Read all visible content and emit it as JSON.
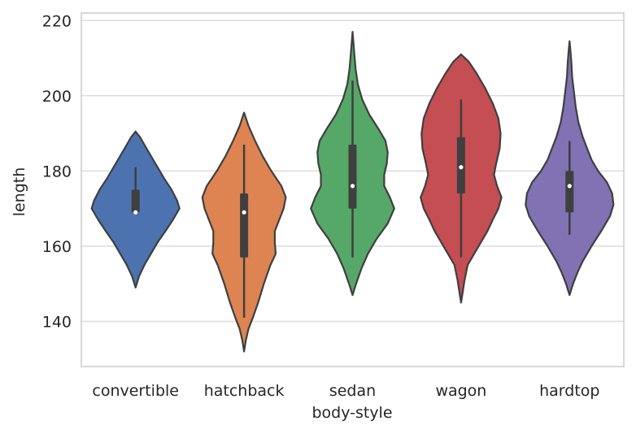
{
  "chart_data": {
    "type": "violin",
    "xlabel": "body-style",
    "ylabel": "length",
    "ylim": [
      128,
      222
    ],
    "yticks": [
      140,
      160,
      180,
      200,
      220
    ],
    "grid": "horizontal",
    "categories": [
      "convertible",
      "hatchback",
      "sedan",
      "wagon",
      "hardtop"
    ],
    "series": [
      {
        "category": "convertible",
        "color": "#4c72b0",
        "min": 149,
        "max": 190.5,
        "q1": 169,
        "median": 169,
        "q3": 175,
        "whisker_low": 169,
        "whisker_high": 181,
        "profile": [
          [
            149,
            0
          ],
          [
            152,
            0.08
          ],
          [
            155,
            0.2
          ],
          [
            158,
            0.35
          ],
          [
            161,
            0.5
          ],
          [
            164,
            0.68
          ],
          [
            167,
            0.85
          ],
          [
            170,
            1.0
          ],
          [
            172,
            0.95
          ],
          [
            175,
            0.82
          ],
          [
            178,
            0.65
          ],
          [
            181,
            0.5
          ],
          [
            184,
            0.35
          ],
          [
            187,
            0.2
          ],
          [
            189,
            0.1
          ],
          [
            190.5,
            0
          ]
        ]
      },
      {
        "category": "hatchback",
        "color": "#dd8452",
        "min": 132,
        "max": 195.5,
        "q1": 157,
        "median": 169,
        "q3": 174,
        "whisker_low": 141,
        "whisker_high": 187,
        "profile": [
          [
            132,
            0
          ],
          [
            135,
            0.04
          ],
          [
            138,
            0.1
          ],
          [
            141,
            0.2
          ],
          [
            145,
            0.32
          ],
          [
            150,
            0.45
          ],
          [
            155,
            0.6
          ],
          [
            158,
            0.72
          ],
          [
            161,
            0.7
          ],
          [
            164,
            0.7
          ],
          [
            167,
            0.8
          ],
          [
            170,
            0.9
          ],
          [
            173,
            0.95
          ],
          [
            176,
            0.85
          ],
          [
            180,
            0.62
          ],
          [
            184,
            0.42
          ],
          [
            188,
            0.25
          ],
          [
            192,
            0.1
          ],
          [
            195.5,
            0
          ]
        ]
      },
      {
        "category": "sedan",
        "color": "#55a868",
        "min": 147,
        "max": 217,
        "q1": 170,
        "median": 176,
        "q3": 187,
        "whisker_low": 157,
        "whisker_high": 204,
        "profile": [
          [
            147,
            0
          ],
          [
            150,
            0.08
          ],
          [
            154,
            0.2
          ],
          [
            158,
            0.35
          ],
          [
            162,
            0.55
          ],
          [
            166,
            0.8
          ],
          [
            170,
            0.95
          ],
          [
            173,
            0.85
          ],
          [
            176,
            0.72
          ],
          [
            179,
            0.72
          ],
          [
            182,
            0.78
          ],
          [
            185,
            0.8
          ],
          [
            188,
            0.75
          ],
          [
            191,
            0.6
          ],
          [
            195,
            0.38
          ],
          [
            199,
            0.22
          ],
          [
            203,
            0.12
          ],
          [
            207,
            0.07
          ],
          [
            211,
            0.04
          ],
          [
            214,
            0.02
          ],
          [
            217,
            0
          ]
        ]
      },
      {
        "category": "wagon",
        "color": "#c44e52",
        "min": 145,
        "max": 211,
        "q1": 174,
        "median": 181,
        "q3": 189,
        "whisker_low": 157,
        "whisker_high": 199,
        "profile": [
          [
            145,
            0
          ],
          [
            148,
            0.04
          ],
          [
            151,
            0.08
          ],
          [
            155,
            0.15
          ],
          [
            158,
            0.3
          ],
          [
            161,
            0.45
          ],
          [
            164,
            0.6
          ],
          [
            167,
            0.72
          ],
          [
            170,
            0.85
          ],
          [
            173,
            0.92
          ],
          [
            176,
            0.82
          ],
          [
            179,
            0.75
          ],
          [
            182,
            0.8
          ],
          [
            186,
            0.88
          ],
          [
            190,
            0.9
          ],
          [
            194,
            0.85
          ],
          [
            198,
            0.72
          ],
          [
            202,
            0.55
          ],
          [
            206,
            0.35
          ],
          [
            209,
            0.18
          ],
          [
            211,
            0
          ]
        ]
      },
      {
        "category": "hardtop",
        "color": "#8172b3",
        "min": 147,
        "max": 214.5,
        "q1": 169,
        "median": 176,
        "q3": 180,
        "whisker_low": 163,
        "whisker_high": 188,
        "profile": [
          [
            147,
            0
          ],
          [
            150,
            0.08
          ],
          [
            153,
            0.18
          ],
          [
            156,
            0.3
          ],
          [
            160,
            0.5
          ],
          [
            164,
            0.72
          ],
          [
            168,
            0.92
          ],
          [
            171,
            1.0
          ],
          [
            174,
            0.97
          ],
          [
            177,
            0.85
          ],
          [
            180,
            0.65
          ],
          [
            183,
            0.5
          ],
          [
            186,
            0.4
          ],
          [
            189,
            0.3
          ],
          [
            193,
            0.2
          ],
          [
            197,
            0.14
          ],
          [
            201,
            0.1
          ],
          [
            205,
            0.06
          ],
          [
            209,
            0.04
          ],
          [
            212,
            0.02
          ],
          [
            214.5,
            0
          ]
        ]
      }
    ]
  }
}
